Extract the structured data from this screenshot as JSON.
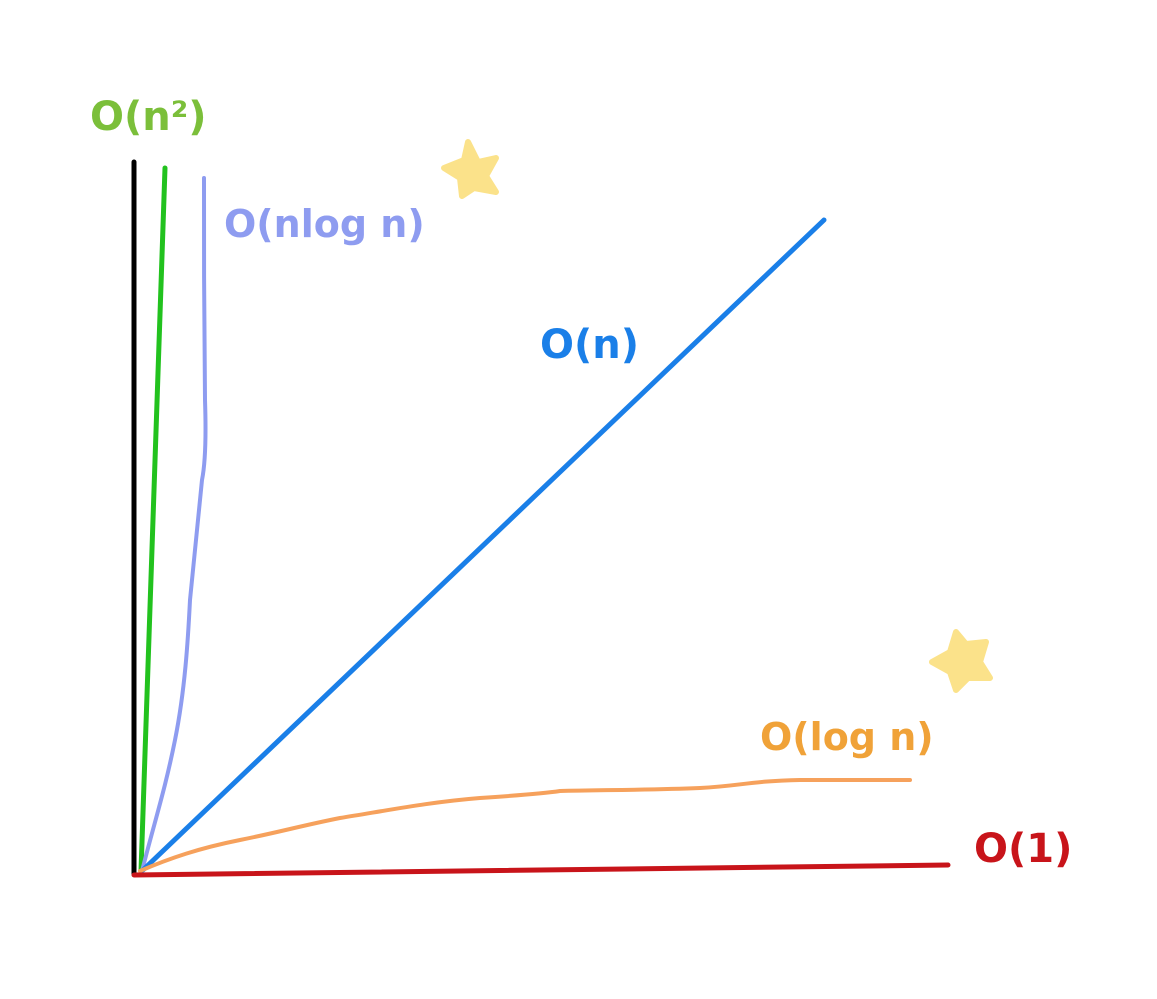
{
  "labels": {
    "n_squared": "O(n²)",
    "n_log_n": "O(nlog n)",
    "linear": "O(n)",
    "log_n": "O(log n)",
    "constant": "O(1)"
  },
  "colors": {
    "axis": "#000000",
    "n_squared_line": "#22c21e",
    "n_squared_label": "#7bbf3a",
    "n_log_n": "#8e9cf0",
    "linear": "#1a7fe8",
    "log_n": "#f6a15c",
    "log_n_label": "#f0a238",
    "constant": "#c8141a",
    "star": "#fbe28a"
  },
  "decorations": {
    "stars": [
      "star-icon",
      "star-icon"
    ]
  }
}
